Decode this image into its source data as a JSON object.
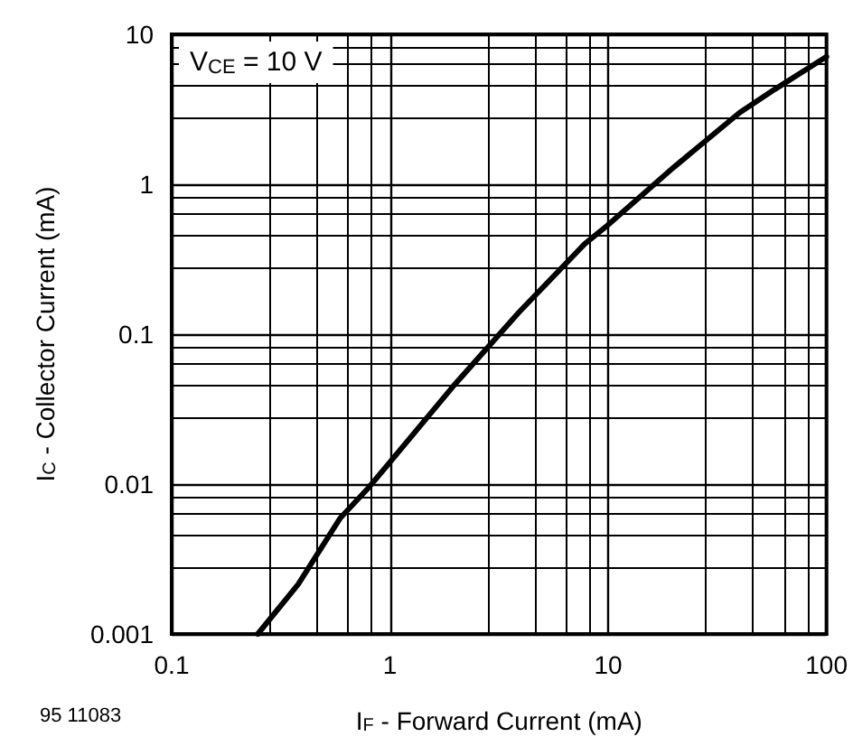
{
  "chart_data": {
    "type": "line",
    "xlabel": "I$_{F}$ - Forward Current (mA)",
    "ylabel": "I$_{C}$ - Collector Current (mA)",
    "annotations": [
      "V$_{CE}$ = 10 V",
      "95 11083"
    ],
    "x": [
      0.248,
      0.38,
      0.59,
      0.8,
      1,
      1.95,
      3.9,
      7.8,
      9.9,
      20,
      40,
      58,
      100
    ],
    "series": [
      {
        "color": "#000000",
        "values": [
          0.001,
          0.00215,
          0.0059,
          0.0095,
          0.014,
          0.045,
          0.14,
          0.4,
          0.53,
          1.3,
          3.0,
          4.3,
          7.1
        ]
      }
    ],
    "xlim": [
      0.1,
      100
    ],
    "ylim": [
      0.001,
      10
    ],
    "xticks": [
      0.1,
      1,
      10,
      100
    ],
    "yticks": [
      0.001,
      0.01,
      0.1,
      1,
      10
    ],
    "log": "xy",
    "grid": true,
    "marker": "none",
    "line_style": "solid"
  }
}
